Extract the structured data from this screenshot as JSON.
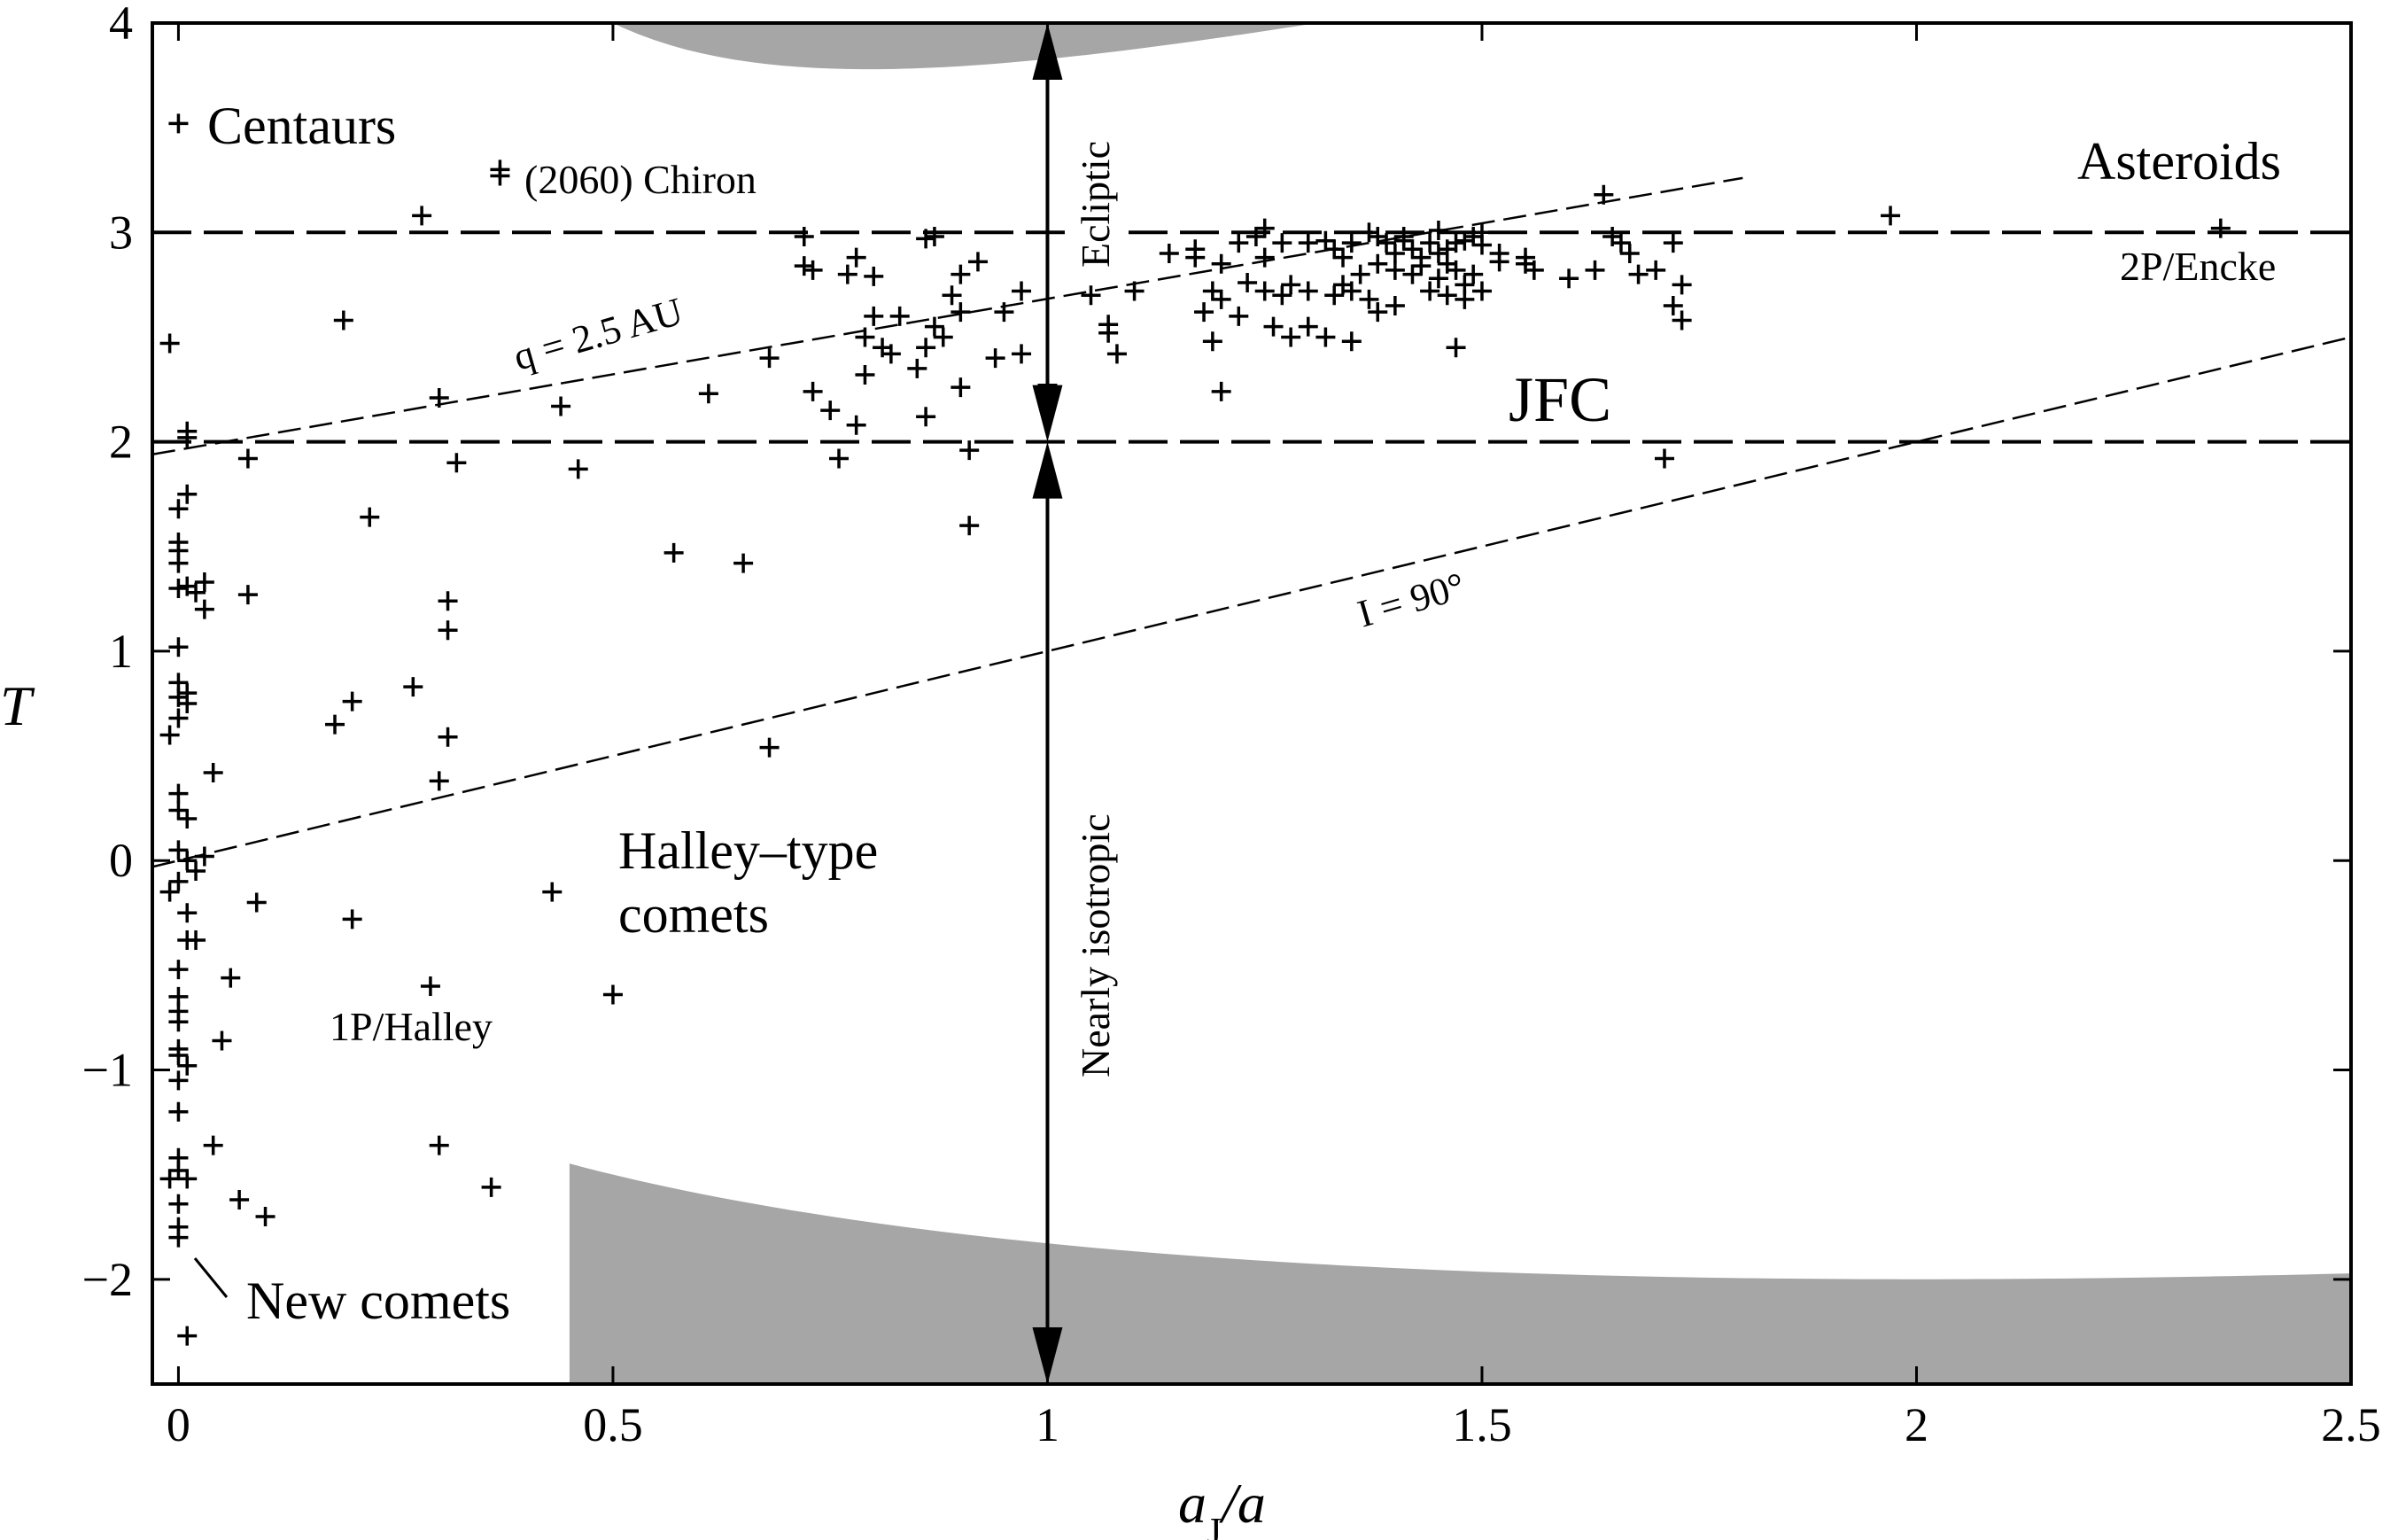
{
  "chart_data": {
    "type": "scatter",
    "xlabel_main": "a",
    "xlabel_sub": "J",
    "xlabel_tail": "/a",
    "ylabel": "T",
    "xlim": [
      -0.03,
      2.5
    ],
    "ylim": [
      -2.5,
      4
    ],
    "xticks": [
      {
        "value": 0,
        "label": "0"
      },
      {
        "value": 0.5,
        "label": "0.5"
      },
      {
        "value": 1,
        "label": "1"
      },
      {
        "value": 1.5,
        "label": "1.5"
      },
      {
        "value": 2,
        "label": "2"
      },
      {
        "value": 2.5,
        "label": "2.5"
      }
    ],
    "yticks": [
      {
        "value": -2,
        "label": "−2"
      },
      {
        "value": -1,
        "label": "−1"
      },
      {
        "value": 0,
        "label": "0"
      },
      {
        "value": 1,
        "label": "1"
      },
      {
        "value": 2,
        "label": "2"
      },
      {
        "value": 3,
        "label": "3"
      },
      {
        "value": 4,
        "label": "4"
      }
    ],
    "hlines": [
      2,
      3
    ],
    "dashed_lines": [
      {
        "name": "q-line",
        "label": "q = 2.5 AU",
        "x": [
          -0.03,
          1.8
        ],
        "y": [
          1.94,
          3.26
        ]
      },
      {
        "name": "i-line",
        "label": "I = 90°",
        "x": [
          -0.03,
          2.5
        ],
        "y": [
          -0.03,
          2.5
        ]
      }
    ],
    "labels": {
      "centaurs": "Centaurs",
      "chiron": "(2060) Chiron",
      "asteroids": "Asteroids",
      "encke": "2P/Encke",
      "jfc": "JFC",
      "halley_type_1": "Halley–type",
      "halley_type_2": "comets",
      "halley": "1P/Halley",
      "new_comets": "New comets",
      "ecliptic": "Ecliptic",
      "isotropic": "Nearly isotropic"
    },
    "colors": {
      "shade": "#a6a6a6",
      "ink": "#000000",
      "background": "#ffffff"
    },
    "points": [
      [
        0.0,
        3.52
      ],
      [
        0.37,
        3.3
      ],
      [
        0.37,
        3.27
      ],
      [
        0.28,
        3.08
      ],
      [
        -0.01,
        2.47
      ],
      [
        0.19,
        2.58
      ],
      [
        0.3,
        2.21
      ],
      [
        0.44,
        2.17
      ],
      [
        0.01,
        2.05
      ],
      [
        0.01,
        2.02
      ],
      [
        0.08,
        1.92
      ],
      [
        0.32,
        1.9
      ],
      [
        0.46,
        1.87
      ],
      [
        0.22,
        1.64
      ],
      [
        0.57,
        1.47
      ],
      [
        0.65,
        1.42
      ],
      [
        0.91,
        1.6
      ],
      [
        0.0,
        1.68
      ],
      [
        0.01,
        1.75
      ],
      [
        0.0,
        1.52
      ],
      [
        0.0,
        1.48
      ],
      [
        0.0,
        1.42
      ],
      [
        0.0,
        1.3
      ],
      [
        0.01,
        1.31
      ],
      [
        0.02,
        1.28
      ],
      [
        0.03,
        1.33
      ],
      [
        0.03,
        1.2
      ],
      [
        0.08,
        1.27
      ],
      [
        0.31,
        1.24
      ],
      [
        0.31,
        1.1
      ],
      [
        0.0,
        1.02
      ],
      [
        0.0,
        0.85
      ],
      [
        0.0,
        0.78
      ],
      [
        0.01,
        0.8
      ],
      [
        0.01,
        0.75
      ],
      [
        0.0,
        0.68
      ],
      [
        -0.01,
        0.6
      ],
      [
        0.27,
        0.83
      ],
      [
        0.2,
        0.76
      ],
      [
        0.18,
        0.65
      ],
      [
        0.31,
        0.59
      ],
      [
        0.3,
        0.38
      ],
      [
        0.68,
        0.54
      ],
      [
        0.04,
        0.42
      ],
      [
        0.0,
        0.32
      ],
      [
        0.0,
        0.24
      ],
      [
        0.01,
        0.2
      ],
      [
        0.0,
        0.05
      ],
      [
        0.01,
        0.0
      ],
      [
        0.03,
        0.02
      ],
      [
        0.02,
        -0.05
      ],
      [
        0.0,
        -0.1
      ],
      [
        -0.01,
        -0.15
      ],
      [
        0.43,
        -0.15
      ],
      [
        0.09,
        -0.2
      ],
      [
        0.2,
        -0.28
      ],
      [
        0.01,
        -0.25
      ],
      [
        0.01,
        -0.38
      ],
      [
        0.02,
        -0.38
      ],
      [
        0.0,
        -0.52
      ],
      [
        0.06,
        -0.56
      ],
      [
        0.29,
        -0.6
      ],
      [
        0.5,
        -0.64
      ],
      [
        0.0,
        -0.65
      ],
      [
        0.0,
        -0.72
      ],
      [
        0.0,
        -0.77
      ],
      [
        0.05,
        -0.86
      ],
      [
        0.0,
        -0.9
      ],
      [
        0.0,
        -0.93
      ],
      [
        0.01,
        -0.98
      ],
      [
        0.0,
        -1.05
      ],
      [
        0.0,
        -1.2
      ],
      [
        0.04,
        -1.36
      ],
      [
        0.3,
        -1.36
      ],
      [
        0.0,
        -1.42
      ],
      [
        0.0,
        -1.48
      ],
      [
        -0.01,
        -1.52
      ],
      [
        0.01,
        -1.52
      ],
      [
        0.36,
        -1.56
      ],
      [
        0.07,
        -1.62
      ],
      [
        0.0,
        -1.64
      ],
      [
        0.1,
        -1.7
      ],
      [
        0.0,
        -1.75
      ],
      [
        0.0,
        -1.8
      ],
      [
        0.01,
        -2.27
      ],
      [
        0.72,
        2.98
      ],
      [
        0.72,
        2.84
      ],
      [
        0.73,
        2.82
      ],
      [
        0.78,
        2.88
      ],
      [
        0.77,
        2.8
      ],
      [
        0.8,
        2.79
      ],
      [
        0.86,
        2.97
      ],
      [
        0.87,
        2.98
      ],
      [
        0.9,
        2.8
      ],
      [
        0.92,
        2.86
      ],
      [
        0.89,
        2.7
      ],
      [
        0.95,
        2.62
      ],
      [
        0.97,
        2.72
      ],
      [
        0.8,
        2.6
      ],
      [
        0.81,
        2.45
      ],
      [
        0.79,
        2.5
      ],
      [
        0.87,
        2.55
      ],
      [
        0.88,
        2.5
      ],
      [
        0.83,
        2.6
      ],
      [
        0.9,
        2.62
      ],
      [
        0.94,
        2.4
      ],
      [
        0.97,
        2.42
      ],
      [
        0.86,
        2.45
      ],
      [
        0.85,
        2.35
      ],
      [
        0.82,
        2.42
      ],
      [
        0.79,
        2.32
      ],
      [
        0.68,
        2.4
      ],
      [
        0.73,
        2.24
      ],
      [
        0.75,
        2.15
      ],
      [
        0.78,
        2.08
      ],
      [
        0.86,
        2.12
      ],
      [
        0.9,
        2.26
      ],
      [
        0.61,
        2.23
      ],
      [
        1.0,
        2.27
      ],
      [
        0.91,
        1.96
      ],
      [
        0.76,
        1.92
      ],
      [
        1.05,
        2.7
      ],
      [
        1.07,
        2.52
      ],
      [
        1.08,
        2.42
      ],
      [
        1.07,
        2.56
      ],
      [
        1.1,
        2.72
      ],
      [
        1.14,
        2.9
      ],
      [
        1.17,
        2.88
      ],
      [
        1.17,
        2.92
      ],
      [
        1.2,
        2.85
      ],
      [
        1.22,
        2.95
      ],
      [
        1.24,
        2.98
      ],
      [
        1.25,
        3.02
      ],
      [
        1.27,
        2.95
      ],
      [
        1.3,
        2.95
      ],
      [
        1.32,
        2.96
      ],
      [
        1.33,
        2.92
      ],
      [
        1.35,
        2.95
      ],
      [
        1.37,
        3.0
      ],
      [
        1.38,
        2.98
      ],
      [
        1.39,
        2.95
      ],
      [
        1.4,
        2.9
      ],
      [
        1.41,
        2.98
      ],
      [
        1.42,
        2.92
      ],
      [
        1.43,
        2.88
      ],
      [
        1.44,
        2.95
      ],
      [
        1.45,
        2.9
      ],
      [
        1.46,
        2.92
      ],
      [
        1.47,
        2.95
      ],
      [
        1.48,
        2.96
      ],
      [
        1.49,
        2.98
      ],
      [
        1.5,
        2.94
      ],
      [
        1.52,
        2.9
      ],
      [
        1.38,
        2.85
      ],
      [
        1.4,
        2.82
      ],
      [
        1.42,
        2.8
      ],
      [
        1.43,
        2.84
      ],
      [
        1.45,
        2.78
      ],
      [
        1.46,
        2.85
      ],
      [
        1.47,
        2.82
      ],
      [
        1.48,
        2.75
      ],
      [
        1.49,
        2.8
      ],
      [
        1.36,
        2.8
      ],
      [
        1.34,
        2.75
      ],
      [
        1.33,
        2.7
      ],
      [
        1.35,
        2.72
      ],
      [
        1.37,
        2.68
      ],
      [
        1.3,
        2.72
      ],
      [
        1.28,
        2.75
      ],
      [
        1.27,
        2.7
      ],
      [
        1.25,
        2.72
      ],
      [
        1.23,
        2.76
      ],
      [
        1.2,
        2.68
      ],
      [
        1.18,
        2.62
      ],
      [
        1.19,
        2.72
      ],
      [
        1.22,
        2.6
      ],
      [
        1.26,
        2.55
      ],
      [
        1.28,
        2.5
      ],
      [
        1.3,
        2.55
      ],
      [
        1.32,
        2.5
      ],
      [
        1.35,
        2.48
      ],
      [
        1.38,
        2.62
      ],
      [
        1.4,
        2.65
      ],
      [
        1.44,
        2.72
      ],
      [
        1.46,
        2.7
      ],
      [
        1.48,
        2.68
      ],
      [
        1.5,
        2.72
      ],
      [
        1.55,
        2.85
      ],
      [
        1.56,
        2.82
      ],
      [
        1.6,
        2.78
      ],
      [
        1.63,
        2.82
      ],
      [
        1.65,
        2.98
      ],
      [
        1.66,
        2.95
      ],
      [
        1.67,
        2.9
      ],
      [
        1.68,
        2.8
      ],
      [
        1.7,
        2.82
      ],
      [
        1.72,
        2.65
      ],
      [
        1.73,
        2.58
      ],
      [
        1.72,
        2.95
      ],
      [
        1.73,
        2.75
      ],
      [
        1.64,
        3.18
      ],
      [
        1.71,
        1.92
      ],
      [
        1.97,
        3.08
      ],
      [
        2.35,
        3.02
      ],
      [
        1.52,
        2.86
      ],
      [
        1.55,
        2.88
      ],
      [
        1.47,
        2.45
      ],
      [
        1.2,
        2.24
      ],
      [
        1.19,
        2.48
      ],
      [
        1.25,
        2.88
      ],
      [
        1.34,
        2.88
      ],
      [
        1.41,
        2.96
      ],
      [
        1.45,
        3.01
      ],
      [
        1.5,
        3.0
      ]
    ]
  }
}
